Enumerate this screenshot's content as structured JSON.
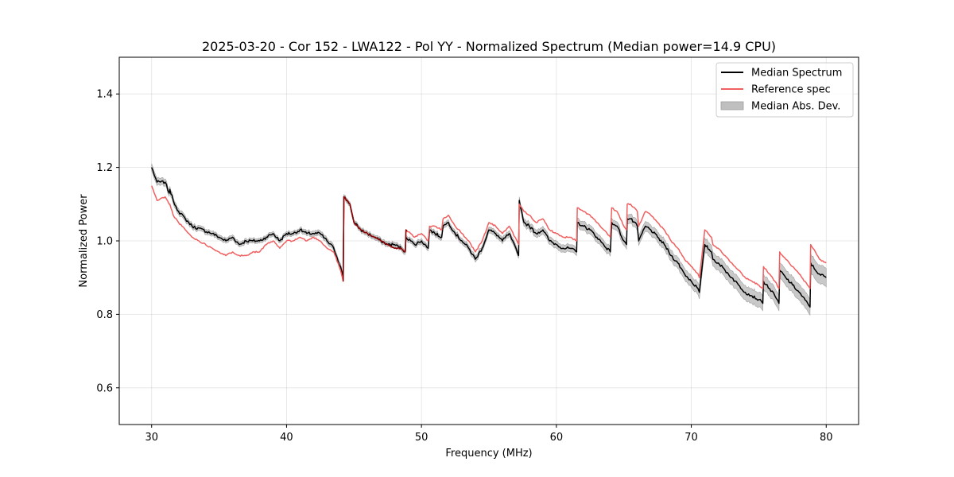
{
  "chart_data": {
    "type": "line",
    "title": "2025-03-20 - Cor 152 - LWA122 - Pol YY - Normalized Spectrum (Median power=14.9 CPU)",
    "xlabel": "Frequency (MHz)",
    "ylabel": "Normalized Power",
    "xlim": [
      27.6,
      82.4
    ],
    "ylim": [
      0.5,
      1.5
    ],
    "xticks": [
      30,
      40,
      50,
      60,
      70,
      80
    ],
    "yticks": [
      0.6,
      0.8,
      1.0,
      1.2,
      1.4
    ],
    "xtick_labels": [
      "30",
      "40",
      "50",
      "60",
      "70",
      "80"
    ],
    "ytick_labels": [
      "0.6",
      "0.8",
      "1.0",
      "1.2",
      "1.4"
    ],
    "grid": true,
    "legend_location": "top-right",
    "colors": {
      "median": "#000000",
      "reference": "#f06060",
      "mad": "#bfbfbf",
      "overlap": "#8b0000"
    },
    "series": [
      {
        "name": "Median Spectrum",
        "style": "line",
        "x": [
          30.0,
          30.4,
          31.0,
          31.3,
          31.35,
          31.6,
          32.0,
          32.5,
          33.0,
          34.5,
          35.0,
          35.5,
          36.0,
          36.5,
          37.0,
          37.5,
          38.0,
          38.5,
          39.0,
          39.5,
          40.0,
          40.5,
          41.0,
          41.5,
          42.0,
          42.5,
          43.0,
          43.5,
          44.0,
          44.2,
          44.25,
          44.7,
          45.0,
          45.5,
          46.0,
          46.5,
          47.0,
          47.5,
          48.0,
          48.5,
          48.8,
          48.85,
          49.2,
          49.5,
          50.0,
          50.5,
          50.6,
          51.0,
          51.5,
          51.6,
          52.0,
          52.5,
          53.0,
          53.5,
          54.0,
          54.5,
          55.0,
          55.5,
          56.0,
          56.5,
          57.2,
          57.25,
          57.6,
          58.0,
          58.5,
          59.0,
          59.5,
          60.0,
          60.5,
          61.0,
          61.5,
          61.55,
          62.0,
          62.5,
          63.0,
          63.5,
          64.0,
          64.1,
          64.5,
          65.0,
          65.2,
          65.25,
          65.5,
          66.0,
          66.1,
          66.6,
          67.0,
          67.5,
          68.0,
          68.5,
          69.0,
          69.5,
          70.0,
          70.5,
          70.6,
          71.0,
          71.5,
          71.6,
          72.0,
          72.5,
          73.0,
          73.5,
          74.0,
          74.5,
          75.0,
          75.3,
          75.35,
          75.8,
          76.2,
          76.5,
          76.55,
          77.0,
          77.5,
          78.0,
          78.8,
          78.85,
          79.2,
          79.5,
          80.0
        ],
        "values": [
          1.2,
          1.16,
          1.16,
          1.13,
          1.14,
          1.11,
          1.08,
          1.06,
          1.04,
          1.02,
          1.01,
          1.0,
          1.01,
          0.99,
          1.0,
          1.0,
          1.0,
          1.01,
          1.02,
          1.0,
          1.02,
          1.02,
          1.03,
          1.02,
          1.02,
          1.02,
          1.0,
          0.98,
          0.93,
          0.9,
          1.12,
          1.1,
          1.05,
          1.03,
          1.02,
          1.01,
          1.0,
          0.99,
          0.99,
          0.98,
          0.97,
          1.01,
          1.0,
          0.99,
          1.0,
          0.98,
          1.03,
          1.02,
          1.01,
          1.04,
          1.05,
          1.02,
          1.0,
          0.98,
          0.95,
          0.98,
          1.03,
          1.02,
          1.0,
          1.02,
          0.96,
          1.11,
          1.05,
          1.04,
          1.02,
          1.03,
          1.0,
          0.99,
          0.98,
          0.98,
          0.97,
          1.05,
          1.04,
          1.03,
          1.01,
          0.99,
          0.97,
          1.05,
          1.04,
          1.0,
          0.99,
          1.06,
          1.06,
          1.04,
          1.0,
          1.04,
          1.03,
          1.01,
          0.99,
          0.96,
          0.94,
          0.91,
          0.89,
          0.87,
          0.86,
          0.99,
          0.97,
          0.95,
          0.94,
          0.92,
          0.9,
          0.88,
          0.86,
          0.85,
          0.84,
          0.83,
          0.89,
          0.87,
          0.85,
          0.83,
          0.92,
          0.9,
          0.88,
          0.86,
          0.82,
          0.94,
          0.92,
          0.91,
          0.9
        ]
      },
      {
        "name": "Reference spec",
        "style": "line",
        "x": [
          30.0,
          30.4,
          31.0,
          31.3,
          31.35,
          31.6,
          32.0,
          32.5,
          33.0,
          33.5,
          34.5,
          35.0,
          35.5,
          36.0,
          36.5,
          37.0,
          37.5,
          38.0,
          38.5,
          39.0,
          39.5,
          40.0,
          40.5,
          41.0,
          41.5,
          42.0,
          42.5,
          43.0,
          43.5,
          44.0,
          44.2,
          44.25,
          44.7,
          45.0,
          45.5,
          46.0,
          46.5,
          47.0,
          47.5,
          48.0,
          48.5,
          48.8,
          48.85,
          49.2,
          49.5,
          50.0,
          50.5,
          50.6,
          51.0,
          51.5,
          51.6,
          52.0,
          52.5,
          53.0,
          53.5,
          54.0,
          54.5,
          55.0,
          55.5,
          56.0,
          56.5,
          57.2,
          57.25,
          57.6,
          58.0,
          58.5,
          59.0,
          59.5,
          60.0,
          60.5,
          61.0,
          61.5,
          61.55,
          62.0,
          62.5,
          63.0,
          63.5,
          64.0,
          64.1,
          64.5,
          65.0,
          65.2,
          65.25,
          65.5,
          66.0,
          66.1,
          66.6,
          67.0,
          67.5,
          68.0,
          68.5,
          69.0,
          69.5,
          70.0,
          70.5,
          70.6,
          71.0,
          71.5,
          71.6,
          72.0,
          72.5,
          73.0,
          73.5,
          74.0,
          74.5,
          75.0,
          75.3,
          75.35,
          75.8,
          76.2,
          76.5,
          76.55,
          77.0,
          77.5,
          78.0,
          78.8,
          78.85,
          79.2,
          79.5,
          80.0
        ],
        "values": [
          1.15,
          1.11,
          1.12,
          1.1,
          1.1,
          1.07,
          1.05,
          1.03,
          1.01,
          1.0,
          0.98,
          0.97,
          0.96,
          0.97,
          0.96,
          0.96,
          0.97,
          0.97,
          0.99,
          1.0,
          0.98,
          1.0,
          1.0,
          1.01,
          1.0,
          1.01,
          1.0,
          0.98,
          0.97,
          0.92,
          0.89,
          1.12,
          1.1,
          1.05,
          1.03,
          1.02,
          1.01,
          1.0,
          0.99,
          0.98,
          0.98,
          0.97,
          1.03,
          1.02,
          1.01,
          1.02,
          1.0,
          1.04,
          1.04,
          1.03,
          1.06,
          1.07,
          1.04,
          1.02,
          1.0,
          0.97,
          1.0,
          1.05,
          1.04,
          1.02,
          1.04,
          0.99,
          1.1,
          1.08,
          1.07,
          1.05,
          1.06,
          1.03,
          1.02,
          1.01,
          1.01,
          1.0,
          1.09,
          1.08,
          1.07,
          1.05,
          1.03,
          1.01,
          1.09,
          1.08,
          1.04,
          1.03,
          1.1,
          1.1,
          1.08,
          1.04,
          1.08,
          1.07,
          1.05,
          1.03,
          1.0,
          0.98,
          0.95,
          0.93,
          0.91,
          0.9,
          1.03,
          1.01,
          0.99,
          0.98,
          0.96,
          0.94,
          0.92,
          0.9,
          0.89,
          0.88,
          0.87,
          0.93,
          0.91,
          0.89,
          0.87,
          0.97,
          0.95,
          0.93,
          0.91,
          0.87,
          0.99,
          0.97,
          0.95,
          0.94
        ]
      },
      {
        "name": "Median Abs. Dev.",
        "style": "band",
        "x": [
          30.0,
          33.0,
          40.0,
          44.0,
          44.25,
          50.0,
          55.0,
          57.2,
          57.25,
          61.5,
          61.55,
          65.0,
          70.5,
          70.6,
          75.0,
          78.8,
          78.85,
          80.0
        ],
        "halfwidth": [
          0.01,
          0.007,
          0.006,
          0.008,
          0.006,
          0.007,
          0.008,
          0.008,
          0.01,
          0.01,
          0.012,
          0.012,
          0.016,
          0.018,
          0.02,
          0.022,
          0.025,
          0.025
        ]
      }
    ]
  }
}
